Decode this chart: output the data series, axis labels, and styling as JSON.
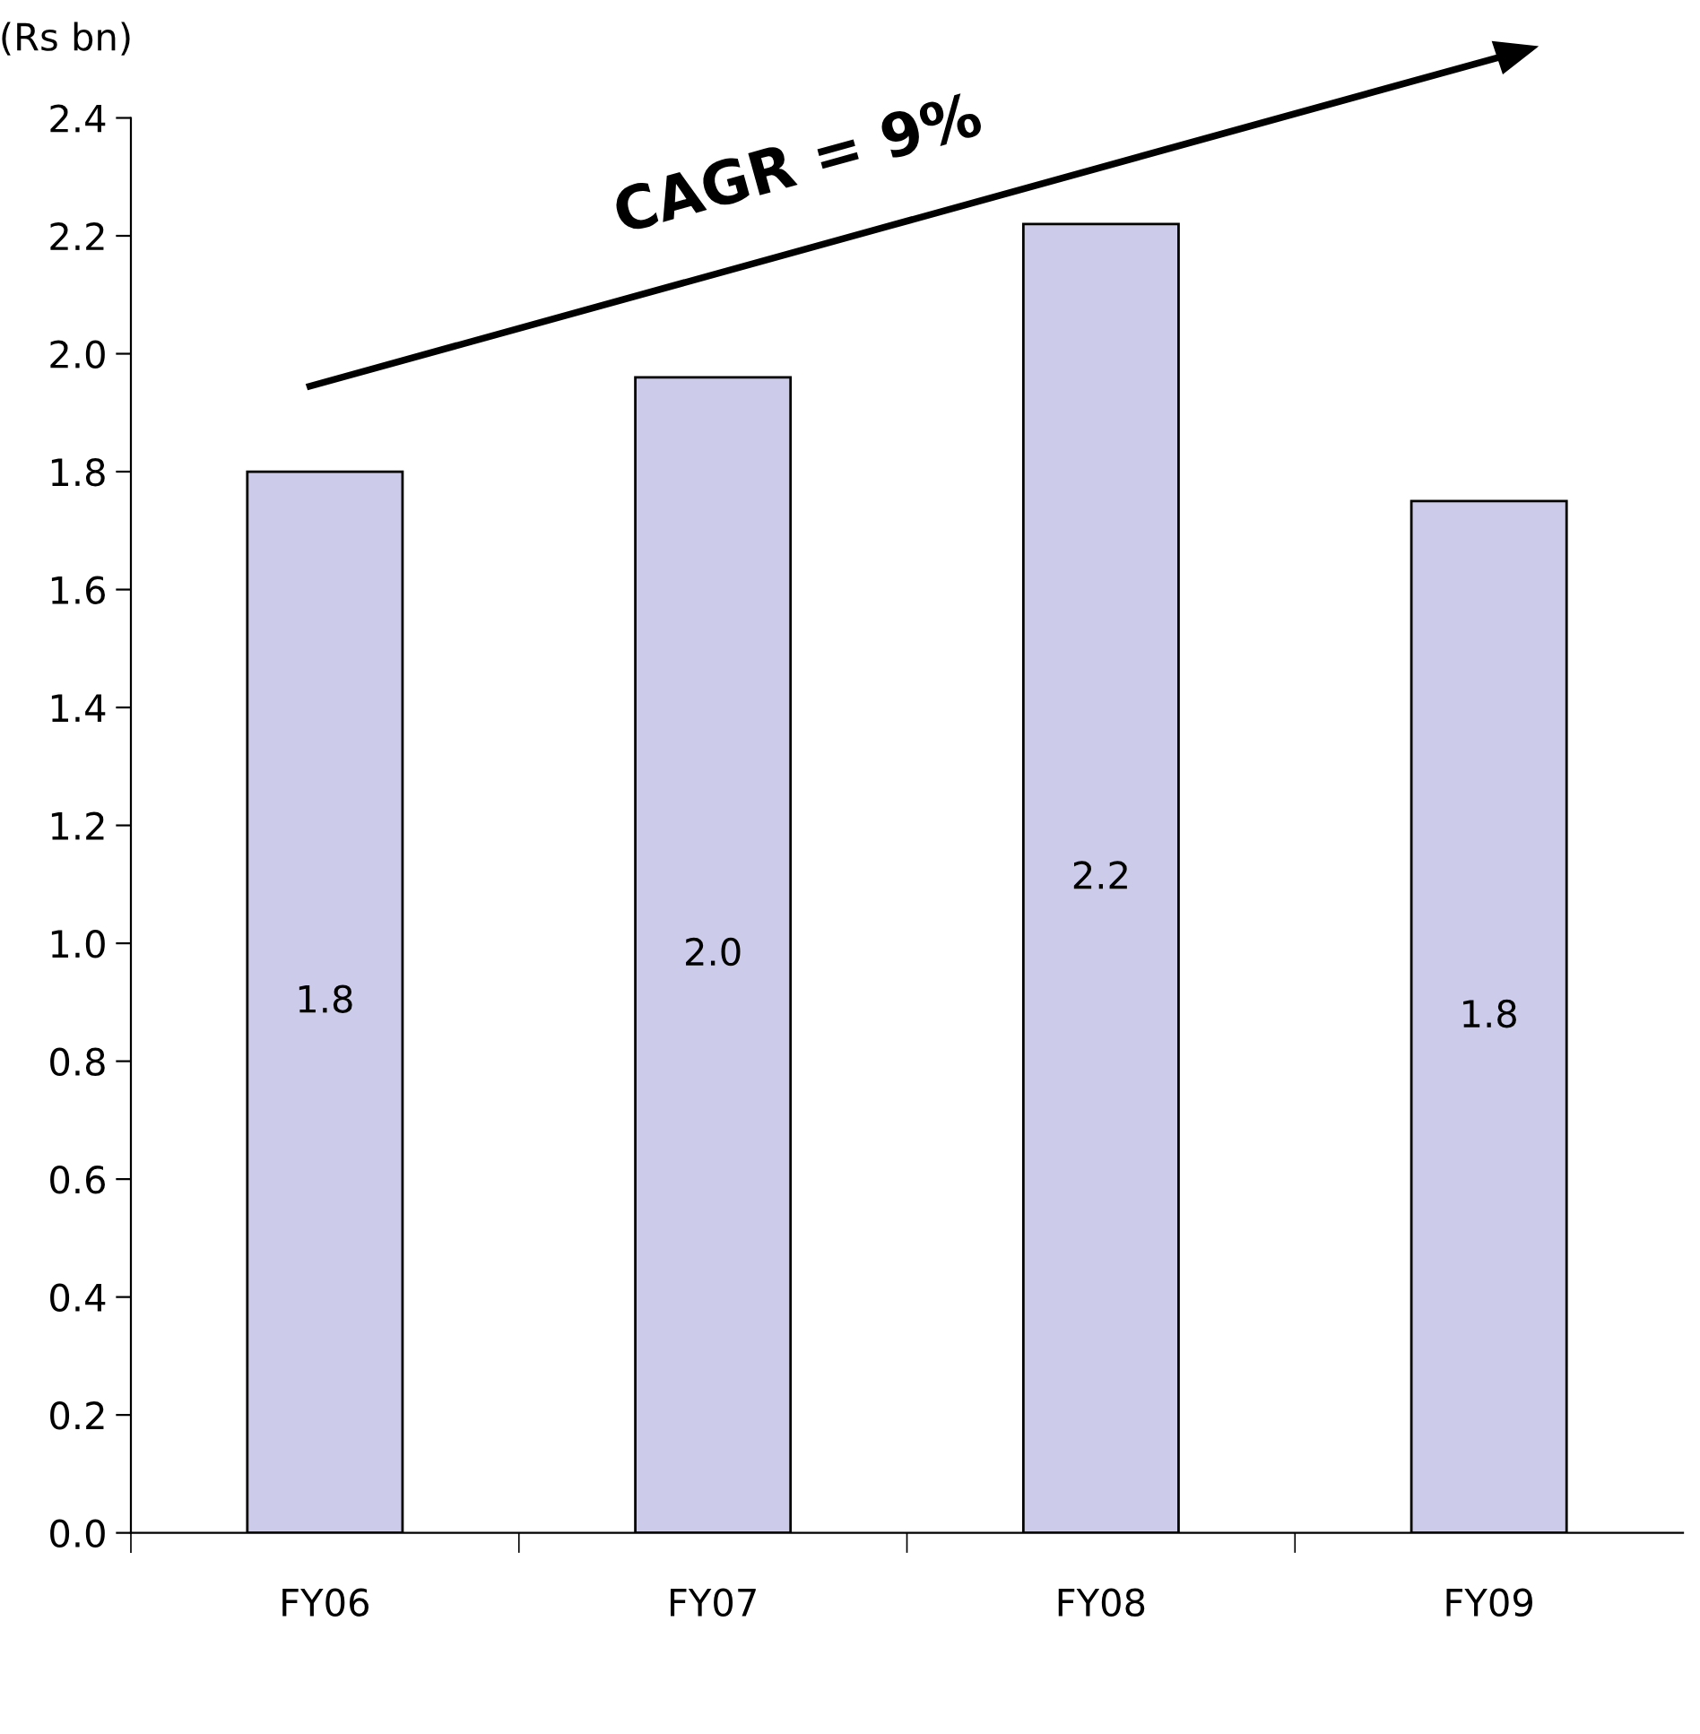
{
  "chart_data": {
    "type": "bar",
    "ylabel": "(Rs bn)",
    "categories": [
      "FY06",
      "FY07",
      "FY08",
      "FY09"
    ],
    "values": [
      1.8,
      1.96,
      2.22,
      1.75
    ],
    "value_labels": [
      "1.8",
      "2.0",
      "2.2",
      "1.8"
    ],
    "color": "#ccccea",
    "ylim": [
      0,
      2.4
    ],
    "yticks": [
      {
        "value": 0,
        "label": "0.0"
      },
      0.2,
      0.4,
      0.6,
      0.8,
      {
        "value": 1,
        "label": "1.0"
      },
      1.2,
      1.4,
      1.6,
      1.8,
      {
        "value": 2,
        "label": "2.0"
      },
      2.2,
      2.4
    ],
    "grid": false,
    "legend": false,
    "annotations": [
      "CAGR = 9%"
    ]
  }
}
